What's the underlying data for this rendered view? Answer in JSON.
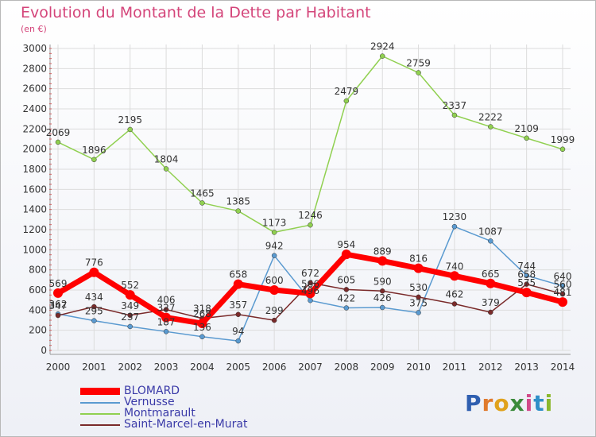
{
  "header": {
    "title": "Evolution du Montant de la Dette par Habitant",
    "subtitle": "(en €)"
  },
  "logo": {
    "letters": [
      "P",
      "r",
      "o",
      "x",
      "i",
      "t",
      "i"
    ]
  },
  "colors": {
    "title": "#d4457a",
    "legend_text": "#3a3aa8",
    "grid": "#dcdcdc",
    "logo": [
      "#2f5fb0",
      "#e07a2c",
      "#e0a21c",
      "#3a8a3a",
      "#d24a8a",
      "#2f8fc8",
      "#8ab82c"
    ]
  },
  "chart_data": {
    "type": "line",
    "x": [
      2000,
      2001,
      2002,
      2003,
      2004,
      2005,
      2006,
      2007,
      2008,
      2009,
      2010,
      2011,
      2012,
      2013,
      2014
    ],
    "ylim": [
      0,
      3000
    ],
    "yticks": [
      0,
      200,
      400,
      600,
      800,
      1000,
      1200,
      1400,
      1600,
      1800,
      2000,
      2200,
      2400,
      2600,
      2800,
      3000
    ],
    "grid": true,
    "legend_position": "bottom-left",
    "series": [
      {
        "name": "BLOMARD",
        "color": "#ff0000",
        "width": 7,
        "marker": 6,
        "values": [
          569,
          776,
          552,
          327,
          268,
          658,
          600,
          566,
          954,
          889,
          816,
          740,
          665,
          575,
          481
        ],
        "labels": [
          "569",
          "776",
          "552",
          "327",
          "268",
          "658",
          "600",
          "566",
          "954",
          "889",
          "816",
          "740",
          "665",
          "575",
          "481"
        ]
      },
      {
        "name": "Vernusse",
        "color": "#5a9ad0",
        "width": 1.5,
        "marker": 3,
        "values": [
          362,
          295,
          237,
          187,
          136,
          94,
          942,
          496,
          422,
          426,
          375,
          1230,
          1087,
          744,
          640
        ],
        "labels": [
          "362",
          "295",
          "237",
          "187",
          "136",
          "94",
          "942",
          "496",
          "422",
          "426",
          "375",
          "1230",
          "1087",
          "744",
          "640"
        ]
      },
      {
        "name": "Montmarault",
        "color": "#90d050",
        "width": 1.5,
        "marker": 3,
        "values": [
          2069,
          1896,
          2195,
          1804,
          1465,
          1385,
          1173,
          1246,
          2479,
          2924,
          2759,
          2337,
          2222,
          2109,
          1999
        ],
        "labels": [
          "2069",
          "1896",
          "2195",
          "1804",
          "1465",
          "1385",
          "1173",
          "1246",
          "2479",
          "2924",
          "2759",
          "2337",
          "2222",
          "2109",
          "1999"
        ]
      },
      {
        "name": "Saint-Marcel-en-Murat",
        "color": "#7a2a2a",
        "width": 1.5,
        "marker": 3,
        "values": [
          347,
          434,
          349,
          406,
          318,
          357,
          299,
          672,
          605,
          590,
          530,
          462,
          379,
          658,
          560
        ],
        "labels": [
          "347",
          "434",
          "349",
          "406",
          "318",
          "357",
          "299",
          "672",
          "605",
          "590",
          "530",
          "462",
          "379",
          "658",
          "560"
        ]
      }
    ]
  }
}
